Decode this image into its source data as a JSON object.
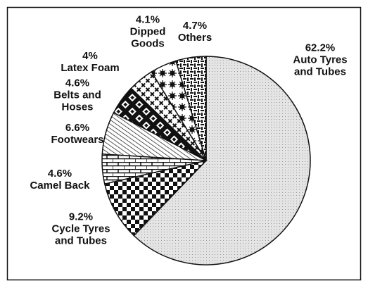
{
  "chart_data": {
    "type": "pie",
    "categories": [
      "Auto Tyres and Tubes",
      "Cycle Tyres and Tubes",
      "Camel Back",
      "Footwears",
      "Belts and Hoses",
      "Latex Foam",
      "Dipped Goods",
      "Others"
    ],
    "values": [
      62.2,
      9.2,
      4.6,
      6.6,
      4.6,
      4,
      4.1,
      4.7
    ],
    "value_labels": [
      "62.2%",
      "9.2%",
      "4.6%",
      "6.6%",
      "4.6%",
      "4%",
      "4.1%",
      "4.7%"
    ]
  }
}
